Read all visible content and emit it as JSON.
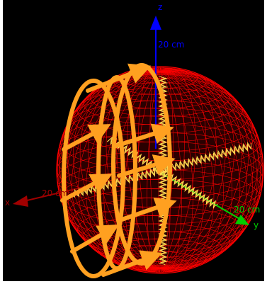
{
  "scene": {
    "background_color": "#000000",
    "mesh_color": "#ff0000",
    "field_color": "#ffa020",
    "ribbon_color": "#ffd850"
  },
  "axes": {
    "x": {
      "letter": "x",
      "scale_label": "20 cm",
      "color": "#a00000"
    },
    "y": {
      "letter": "y",
      "scale_label": "20 cm",
      "color": "#00d000"
    },
    "z": {
      "letter": "z",
      "scale_label": "20 cm",
      "color": "#0000ff"
    }
  }
}
